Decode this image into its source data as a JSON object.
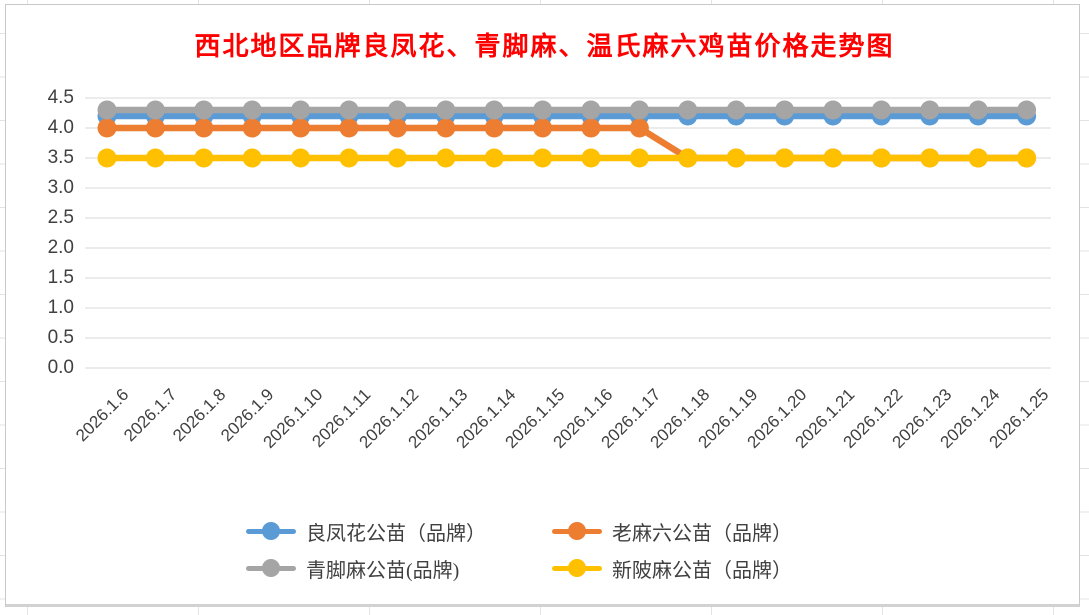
{
  "chart_data": {
    "type": "line",
    "title": "西北地区品牌良凤花、青脚麻、温氏麻六鸡苗价格走势图",
    "title_color": "#FF0000",
    "categories": [
      "2026.1.6",
      "2026.1.7",
      "2026.1.8",
      "2026.1.9",
      "2026.1.10",
      "2026.1.11",
      "2026.1.12",
      "2026.1.13",
      "2026.1.14",
      "2026.1.15",
      "2026.1.16",
      "2026.1.17",
      "2026.1.18",
      "2026.1.19",
      "2026.1.20",
      "2026.1.21",
      "2026.1.22",
      "2026.1.23",
      "2026.1.24",
      "2026.1.25"
    ],
    "series": [
      {
        "name": "良凤花公苗（品牌）",
        "color": "#5B9BD5",
        "values": [
          4.2,
          4.2,
          4.2,
          4.2,
          4.2,
          4.2,
          4.2,
          4.2,
          4.2,
          4.2,
          4.2,
          4.2,
          4.2,
          4.2,
          4.2,
          4.2,
          4.2,
          4.2,
          4.2,
          4.2
        ]
      },
      {
        "name": "老麻六公苗（品牌）",
        "color": "#ED7D31",
        "values": [
          4.0,
          4.0,
          4.0,
          4.0,
          4.0,
          4.0,
          4.0,
          4.0,
          4.0,
          4.0,
          4.0,
          4.0,
          3.5,
          3.5,
          3.5,
          3.5,
          3.5,
          3.5,
          3.5,
          3.5
        ]
      },
      {
        "name": "青脚麻公苗(品牌)",
        "color": "#A5A5A5",
        "values": [
          4.3,
          4.3,
          4.3,
          4.3,
          4.3,
          4.3,
          4.3,
          4.3,
          4.3,
          4.3,
          4.3,
          4.3,
          4.3,
          4.3,
          4.3,
          4.3,
          4.3,
          4.3,
          4.3,
          4.3
        ]
      },
      {
        "name": "新陂麻公苗（品牌）",
        "color": "#FFC000",
        "values": [
          3.5,
          3.5,
          3.5,
          3.5,
          3.5,
          3.5,
          3.5,
          3.5,
          3.5,
          3.5,
          3.5,
          3.5,
          3.5,
          3.5,
          3.5,
          3.5,
          3.5,
          3.5,
          3.5,
          3.5
        ]
      }
    ],
    "xlabel": "",
    "ylabel": "",
    "ylim": [
      0,
      4.5
    ],
    "yticks": [
      4.5,
      4.0,
      3.5,
      3.0,
      2.5,
      2.0,
      1.5,
      1.0,
      0.5,
      0.0
    ],
    "ytick_labels": [
      "4.5",
      "4.0",
      "3.5",
      "3.0",
      "2.5",
      "2.0",
      "1.5",
      "1.0",
      "0.5",
      "0.0"
    ],
    "grid": true,
    "gridline_color": "#D9D9D9",
    "axis_text_color": "#404040",
    "legend_position": "bottom",
    "legend_columns": 2
  }
}
